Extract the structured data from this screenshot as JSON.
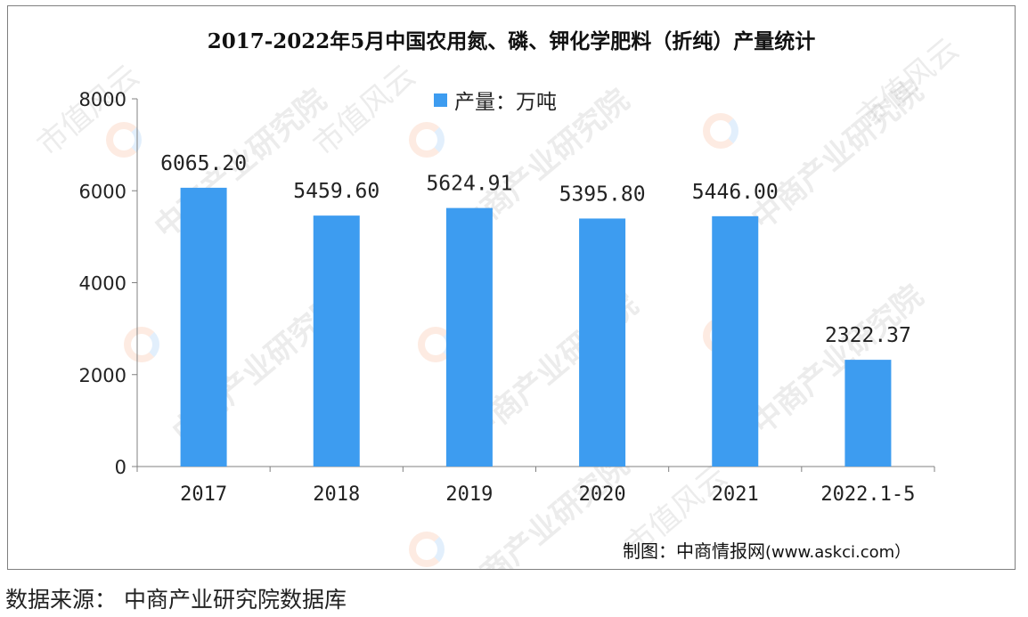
{
  "chart_data": {
    "type": "bar",
    "title": "2017-2022年5月中国农用氮、磷、钾化学肥料（折纯）产量统计",
    "legend": [
      "产量：万吨"
    ],
    "legend_position": "top",
    "categories": [
      "2017",
      "2018",
      "2019",
      "2020",
      "2021",
      "2022.1-5"
    ],
    "series": [
      {
        "name": "产量：万吨",
        "values": [
          6065.2,
          5459.6,
          5624.91,
          5395.8,
          5446.0,
          2322.37
        ]
      }
    ],
    "data_labels": [
      "6065.20",
      "5459.60",
      "5624.91",
      "5395.80",
      "5446.00",
      "2322.37"
    ],
    "y_ticks": [
      "8000",
      "6000",
      "4000",
      "2000",
      "0"
    ],
    "ylim": [
      0,
      8000
    ],
    "grid": false,
    "bar_color": "#3d9cf0"
  },
  "producer": {
    "label": "制图：中商情报网",
    "site": "(www.askci.com）"
  },
  "source": "数据来源：  中商产业研究院数据库",
  "watermarks": {
    "brand": "中商产业研究院",
    "city": "市值风云"
  }
}
